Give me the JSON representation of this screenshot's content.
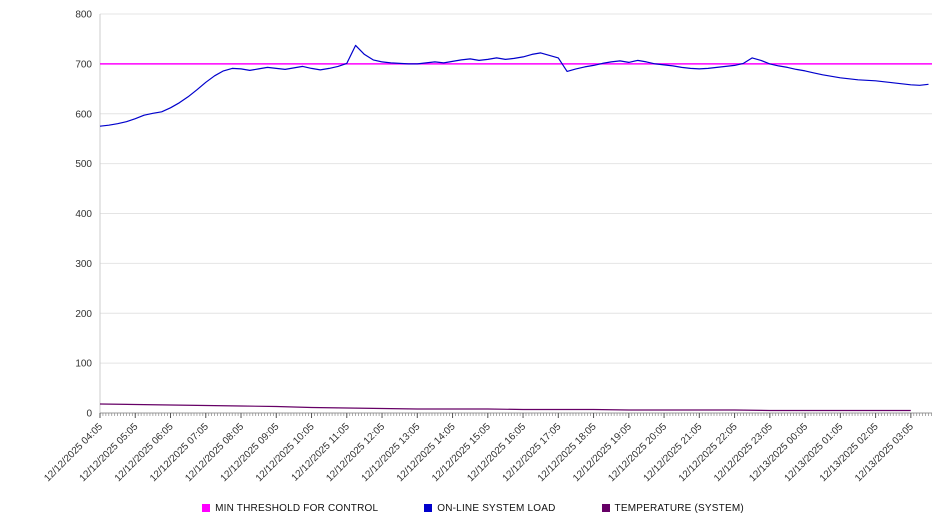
{
  "chart_data": {
    "type": "line",
    "title": "",
    "xlabel": "",
    "ylabel": "",
    "ylim": [
      0,
      800
    ],
    "yticks": [
      0,
      100,
      200,
      300,
      400,
      500,
      600,
      700,
      800
    ],
    "grid": "horizontal",
    "legend_position": "bottom",
    "x_labels": [
      "12/12/2025 04:05",
      "12/12/2025 05:05",
      "12/12/2025 06:05",
      "12/12/2025 07:05",
      "12/12/2025 08:05",
      "12/12/2025 09:05",
      "12/12/2025 10:05",
      "12/12/2025 11:05",
      "12/12/2025 12:05",
      "12/12/2025 13:05",
      "12/12/2025 14:05",
      "12/12/2025 15:05",
      "12/12/2025 16:05",
      "12/12/2025 17:05",
      "12/12/2025 18:05",
      "12/12/2025 19:05",
      "12/12/2025 20:05",
      "12/12/2025 21:05",
      "12/12/2025 22:05",
      "12/12/2025 23:05",
      "12/13/2025 00:05",
      "12/13/2025 01:05",
      "12/13/2025 02:05",
      "12/13/2025 03:05"
    ],
    "series": [
      {
        "name": "MIN THRESHOLD FOR CONTROL",
        "type": "threshold",
        "color": "#ff00ff",
        "value": 700
      },
      {
        "name": "ON-LINE SYSTEM LOAD",
        "type": "line",
        "color": "#0000cc",
        "x_start": 0,
        "x_step": 0.25,
        "values": [
          575,
          577,
          580,
          584,
          590,
          597,
          601,
          604,
          612,
          622,
          634,
          648,
          663,
          676,
          686,
          691,
          690,
          687,
          690,
          693,
          691,
          689,
          692,
          695,
          691,
          688,
          691,
          695,
          701,
          737,
          719,
          708,
          704,
          702,
          701,
          700,
          700,
          702,
          704,
          702,
          705,
          708,
          710,
          707,
          709,
          712,
          709,
          711,
          714,
          719,
          722,
          717,
          712,
          685,
          690,
          694,
          697,
          701,
          704,
          706,
          703,
          707,
          704,
          700,
          698,
          696,
          693,
          691,
          690,
          691,
          693,
          695,
          697,
          701,
          712,
          707,
          700,
          696,
          693,
          689,
          686,
          682,
          678,
          675,
          672,
          670,
          668,
          667,
          666,
          664,
          662,
          660,
          658,
          657,
          659
        ]
      },
      {
        "name": "TEMPERATURE (SYSTEM)",
        "type": "line",
        "color": "#660066",
        "x_start": 0,
        "x_step": 1,
        "values": [
          18,
          17,
          16,
          15,
          14,
          13,
          11,
          10,
          9,
          8,
          8,
          8,
          7,
          7,
          7,
          6,
          6,
          6,
          6,
          5,
          5,
          5,
          5,
          5
        ]
      }
    ]
  }
}
